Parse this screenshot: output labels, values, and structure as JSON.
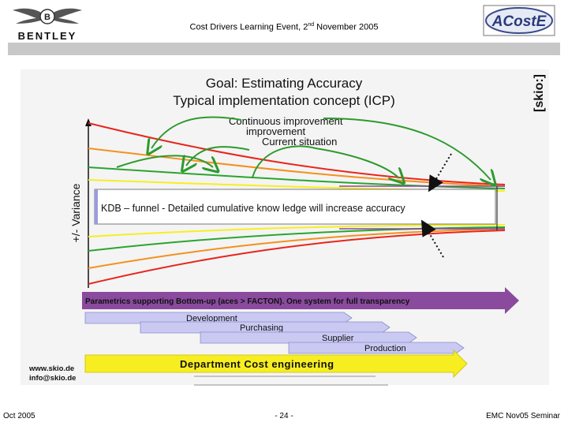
{
  "header": {
    "title_prefix": "Cost Drivers Learning Event, 2",
    "title_sup": "nd",
    "title_suffix": " November 2005",
    "bentley_label": "BENTLEY",
    "acoste_label": "ACostE"
  },
  "slide": {
    "goal_line1": "Goal: Estimating Accuracy",
    "goal_line2": "Typical implementation concept (ICP)",
    "skio_label": "[skio:]",
    "continuous_line1": "Continuous improvement",
    "continuous_line2": "improvement",
    "current_situation": "Current situation",
    "variance_label": "+/- Variance",
    "kdb_text": "KDB – funnel - Detailed cumulative know ledge will increase accuracy",
    "parametrics_text": "Parametrics supporting Bottom-up (aces > FACTON). One system for full transparency",
    "stages": [
      "Development",
      "Purchasing",
      "Supplier",
      "Production"
    ],
    "department_text": "Department Cost engineering",
    "web": "www.skio.de",
    "email": "info@skio.de"
  },
  "colors": {
    "red": "#e8251c",
    "orange": "#f5901e",
    "green": "#2aa52e",
    "yellow": "#f7ee22",
    "purple": "#8a4a9e",
    "stage_fill": "#c9c9f2",
    "arc_green": "#2d9a2d"
  },
  "footer": {
    "left": "Oct 2005",
    "center": "- 24 -",
    "right": "EMC Nov05 Seminar"
  }
}
